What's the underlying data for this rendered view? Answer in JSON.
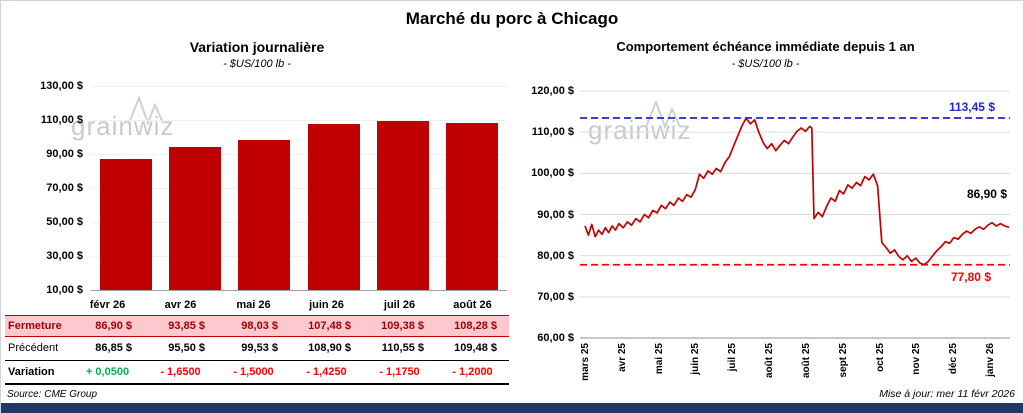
{
  "title": "Marché du porc à Chicago",
  "left_chart": {
    "title": "Variation journalière",
    "subtitle": "- $US/100 lb -",
    "watermark": "grainwiz",
    "y_ticks": [
      "130,00 $",
      "110,00 $",
      "90,00 $",
      "70,00 $",
      "50,00 $",
      "30,00 $",
      "10,00 $"
    ]
  },
  "table": {
    "months": [
      "févr 26",
      "avr 26",
      "mai 26",
      "juin 26",
      "juil 26",
      "août 26"
    ],
    "rows": [
      {
        "id": "fermeture",
        "label": "Fermeture",
        "values": [
          "86,90 $",
          "93,85 $",
          "98,03 $",
          "107,48 $",
          "109,38 $",
          "108,28 $"
        ]
      },
      {
        "id": "precedent",
        "label": "Précédent",
        "values": [
          "86,85 $",
          "95,50 $",
          "99,53 $",
          "108,90 $",
          "110,55 $",
          "109,48 $"
        ]
      },
      {
        "id": "variation",
        "label": "Variation",
        "values": [
          "+ 0,0500",
          "- 1,6500",
          "- 1,5000",
          "- 1,4250",
          "- 1,1750",
          "- 1,2000"
        ],
        "value_colors": [
          "#00B050",
          "#FF0000",
          "#FF0000",
          "#FF0000",
          "#FF0000",
          "#FF0000"
        ]
      }
    ]
  },
  "right_chart": {
    "title": "Comportement échéance immédiate depuis 1 an",
    "subtitle": "- $US/100 lb -",
    "watermark": "grainwiz",
    "y_ticks": [
      "120,00 $",
      "110,00 $",
      "100,00 $",
      "90,00 $",
      "80,00 $",
      "70,00 $",
      "60,00 $"
    ]
  },
  "footer": {
    "source": "Source: CME Group",
    "updated": "Mise à jour: mer 11 févr 2026"
  },
  "chart_data": [
    {
      "type": "bar",
      "title": "Variation journalière",
      "subtitle": "- $US/100 lb -",
      "categories": [
        "févr 26",
        "avr 26",
        "mai 26",
        "juin 26",
        "juil 26",
        "août 26"
      ],
      "values": [
        86.9,
        93.85,
        98.03,
        107.48,
        109.38,
        108.28
      ],
      "previous_values": [
        86.85,
        95.5,
        99.53,
        108.9,
        110.55,
        109.48
      ],
      "variations": [
        0.05,
        -1.65,
        -1.5,
        -1.425,
        -1.175,
        -1.2
      ],
      "ylabel": "$US/100 lb",
      "ylim": [
        10,
        130
      ],
      "ytick_step": 20,
      "bar_color": "#C00000",
      "grid": false,
      "legend": "none"
    },
    {
      "type": "line",
      "title": "Comportement échéance immédiate depuis 1 an",
      "subtitle": "- $US/100 lb -",
      "ylabel": "$US/100 lb",
      "ylim": [
        60,
        120
      ],
      "ytick_step": 10,
      "line_color": "#C00000",
      "grid": true,
      "legend": "none",
      "x_ticks": [
        "mars 25",
        "avr 25",
        "mai 25",
        "juin 25",
        "juil 25",
        "août 25",
        "août 25",
        "sept 25",
        "oct 25",
        "nov 25",
        "déc 25",
        "janv 26"
      ],
      "annotations": [
        {
          "label": "113,45 $",
          "value": 113.45,
          "color": "#2323DC",
          "style": "dashed"
        },
        {
          "label": "77,80 $",
          "value": 77.8,
          "color": "#FF0000",
          "style": "dashed"
        },
        {
          "label": "86,90 $",
          "value": 86.9,
          "color": "#000000",
          "style": "none"
        }
      ],
      "points": [
        [
          0.0,
          87.2
        ],
        [
          0.008,
          85.0
        ],
        [
          0.016,
          87.6
        ],
        [
          0.024,
          84.6
        ],
        [
          0.032,
          86.2
        ],
        [
          0.04,
          85.2
        ],
        [
          0.048,
          86.8
        ],
        [
          0.056,
          85.6
        ],
        [
          0.064,
          87.2
        ],
        [
          0.072,
          86.2
        ],
        [
          0.08,
          87.8
        ],
        [
          0.09,
          86.8
        ],
        [
          0.1,
          88.2
        ],
        [
          0.11,
          87.4
        ],
        [
          0.12,
          89.0
        ],
        [
          0.13,
          88.2
        ],
        [
          0.14,
          90.0
        ],
        [
          0.15,
          89.2
        ],
        [
          0.16,
          91.0
        ],
        [
          0.17,
          90.4
        ],
        [
          0.18,
          92.2
        ],
        [
          0.19,
          91.4
        ],
        [
          0.2,
          93.0
        ],
        [
          0.21,
          92.2
        ],
        [
          0.22,
          94.0
        ],
        [
          0.23,
          93.2
        ],
        [
          0.24,
          94.8
        ],
        [
          0.25,
          94.2
        ],
        [
          0.26,
          96.0
        ],
        [
          0.27,
          99.8
        ],
        [
          0.28,
          98.8
        ],
        [
          0.29,
          100.6
        ],
        [
          0.3,
          99.8
        ],
        [
          0.31,
          101.2
        ],
        [
          0.32,
          100.4
        ],
        [
          0.33,
          102.6
        ],
        [
          0.34,
          104.0
        ],
        [
          0.35,
          106.5
        ],
        [
          0.36,
          109.0
        ],
        [
          0.37,
          111.5
        ],
        [
          0.38,
          113.4
        ],
        [
          0.39,
          112.0
        ],
        [
          0.4,
          113.0
        ],
        [
          0.41,
          110.0
        ],
        [
          0.42,
          107.5
        ],
        [
          0.43,
          106.0
        ],
        [
          0.44,
          107.2
        ],
        [
          0.45,
          105.5
        ],
        [
          0.46,
          106.8
        ],
        [
          0.47,
          108.0
        ],
        [
          0.48,
          107.2
        ],
        [
          0.49,
          108.8
        ],
        [
          0.5,
          110.2
        ],
        [
          0.51,
          111.0
        ],
        [
          0.52,
          110.2
        ],
        [
          0.53,
          111.4
        ],
        [
          0.535,
          111.0
        ],
        [
          0.54,
          89.0
        ],
        [
          0.55,
          90.5
        ],
        [
          0.56,
          89.5
        ],
        [
          0.57,
          92.0
        ],
        [
          0.58,
          94.0
        ],
        [
          0.59,
          93.2
        ],
        [
          0.6,
          95.8
        ],
        [
          0.61,
          95.0
        ],
        [
          0.62,
          97.2
        ],
        [
          0.63,
          96.4
        ],
        [
          0.64,
          97.8
        ],
        [
          0.65,
          97.0
        ],
        [
          0.66,
          99.2
        ],
        [
          0.67,
          98.4
        ],
        [
          0.68,
          99.8
        ],
        [
          0.69,
          97.0
        ],
        [
          0.7,
          83.2
        ],
        [
          0.71,
          82.0
        ],
        [
          0.72,
          80.6
        ],
        [
          0.73,
          81.4
        ],
        [
          0.74,
          79.8
        ],
        [
          0.75,
          79.0
        ],
        [
          0.76,
          80.0
        ],
        [
          0.77,
          78.6
        ],
        [
          0.78,
          79.4
        ],
        [
          0.79,
          78.2
        ],
        [
          0.8,
          77.8
        ],
        [
          0.81,
          78.6
        ],
        [
          0.82,
          80.0
        ],
        [
          0.83,
          81.2
        ],
        [
          0.84,
          82.2
        ],
        [
          0.85,
          83.4
        ],
        [
          0.86,
          83.0
        ],
        [
          0.87,
          84.4
        ],
        [
          0.88,
          84.0
        ],
        [
          0.89,
          85.2
        ],
        [
          0.9,
          86.0
        ],
        [
          0.91,
          85.4
        ],
        [
          0.92,
          86.4
        ],
        [
          0.93,
          87.0
        ],
        [
          0.94,
          86.4
        ],
        [
          0.95,
          87.4
        ],
        [
          0.96,
          88.0
        ],
        [
          0.97,
          87.2
        ],
        [
          0.98,
          87.8
        ],
        [
          0.99,
          87.2
        ],
        [
          1.0,
          86.9
        ]
      ]
    }
  ]
}
